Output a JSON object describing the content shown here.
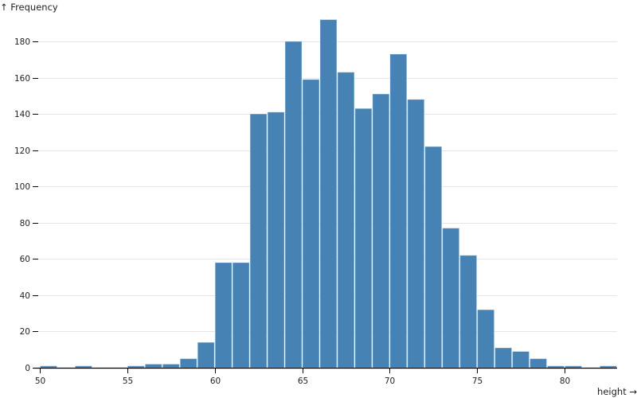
{
  "chart_data": {
    "type": "bar",
    "subtype": "histogram",
    "title": "",
    "xlabel": "height →",
    "ylabel": "↑ Frequency",
    "bin_width": 1,
    "bins": [
      {
        "x0": 50,
        "x1": 51,
        "count": 1
      },
      {
        "x0": 51,
        "x1": 52,
        "count": 0
      },
      {
        "x0": 52,
        "x1": 53,
        "count": 1
      },
      {
        "x0": 53,
        "x1": 54,
        "count": 0
      },
      {
        "x0": 54,
        "x1": 55,
        "count": 0
      },
      {
        "x0": 55,
        "x1": 56,
        "count": 1
      },
      {
        "x0": 56,
        "x1": 57,
        "count": 2
      },
      {
        "x0": 57,
        "x1": 58,
        "count": 2
      },
      {
        "x0": 58,
        "x1": 59,
        "count": 5
      },
      {
        "x0": 59,
        "x1": 60,
        "count": 14
      },
      {
        "x0": 60,
        "x1": 61,
        "count": 58
      },
      {
        "x0": 61,
        "x1": 62,
        "count": 58
      },
      {
        "x0": 62,
        "x1": 63,
        "count": 140
      },
      {
        "x0": 63,
        "x1": 64,
        "count": 141
      },
      {
        "x0": 64,
        "x1": 65,
        "count": 180
      },
      {
        "x0": 65,
        "x1": 66,
        "count": 159
      },
      {
        "x0": 66,
        "x1": 67,
        "count": 192
      },
      {
        "x0": 67,
        "x1": 68,
        "count": 163
      },
      {
        "x0": 68,
        "x1": 69,
        "count": 143
      },
      {
        "x0": 69,
        "x1": 70,
        "count": 151
      },
      {
        "x0": 70,
        "x1": 71,
        "count": 173
      },
      {
        "x0": 71,
        "x1": 72,
        "count": 148
      },
      {
        "x0": 72,
        "x1": 73,
        "count": 122
      },
      {
        "x0": 73,
        "x1": 74,
        "count": 77
      },
      {
        "x0": 74,
        "x1": 75,
        "count": 62
      },
      {
        "x0": 75,
        "x1": 76,
        "count": 32
      },
      {
        "x0": 76,
        "x1": 77,
        "count": 11
      },
      {
        "x0": 77,
        "x1": 78,
        "count": 9
      },
      {
        "x0": 78,
        "x1": 79,
        "count": 5
      },
      {
        "x0": 79,
        "x1": 80,
        "count": 1
      },
      {
        "x0": 80,
        "x1": 81,
        "count": 1
      },
      {
        "x0": 81,
        "x1": 82,
        "count": 0
      },
      {
        "x0": 82,
        "x1": 83,
        "count": 1
      }
    ],
    "x_ticks": [
      50,
      55,
      60,
      65,
      70,
      75,
      80
    ],
    "y_ticks": [
      0,
      20,
      40,
      60,
      80,
      100,
      120,
      140,
      160,
      180
    ],
    "xlim": [
      50,
      83
    ],
    "ylim": [
      0,
      192
    ],
    "grid": {
      "horizontal": true,
      "vertical": false
    },
    "legend": null,
    "colors": {
      "bar": "#4682b4",
      "bar_stroke": "#ffffff",
      "grid": "#e5e5e5",
      "axis": "#000000",
      "text": "#222222"
    }
  }
}
